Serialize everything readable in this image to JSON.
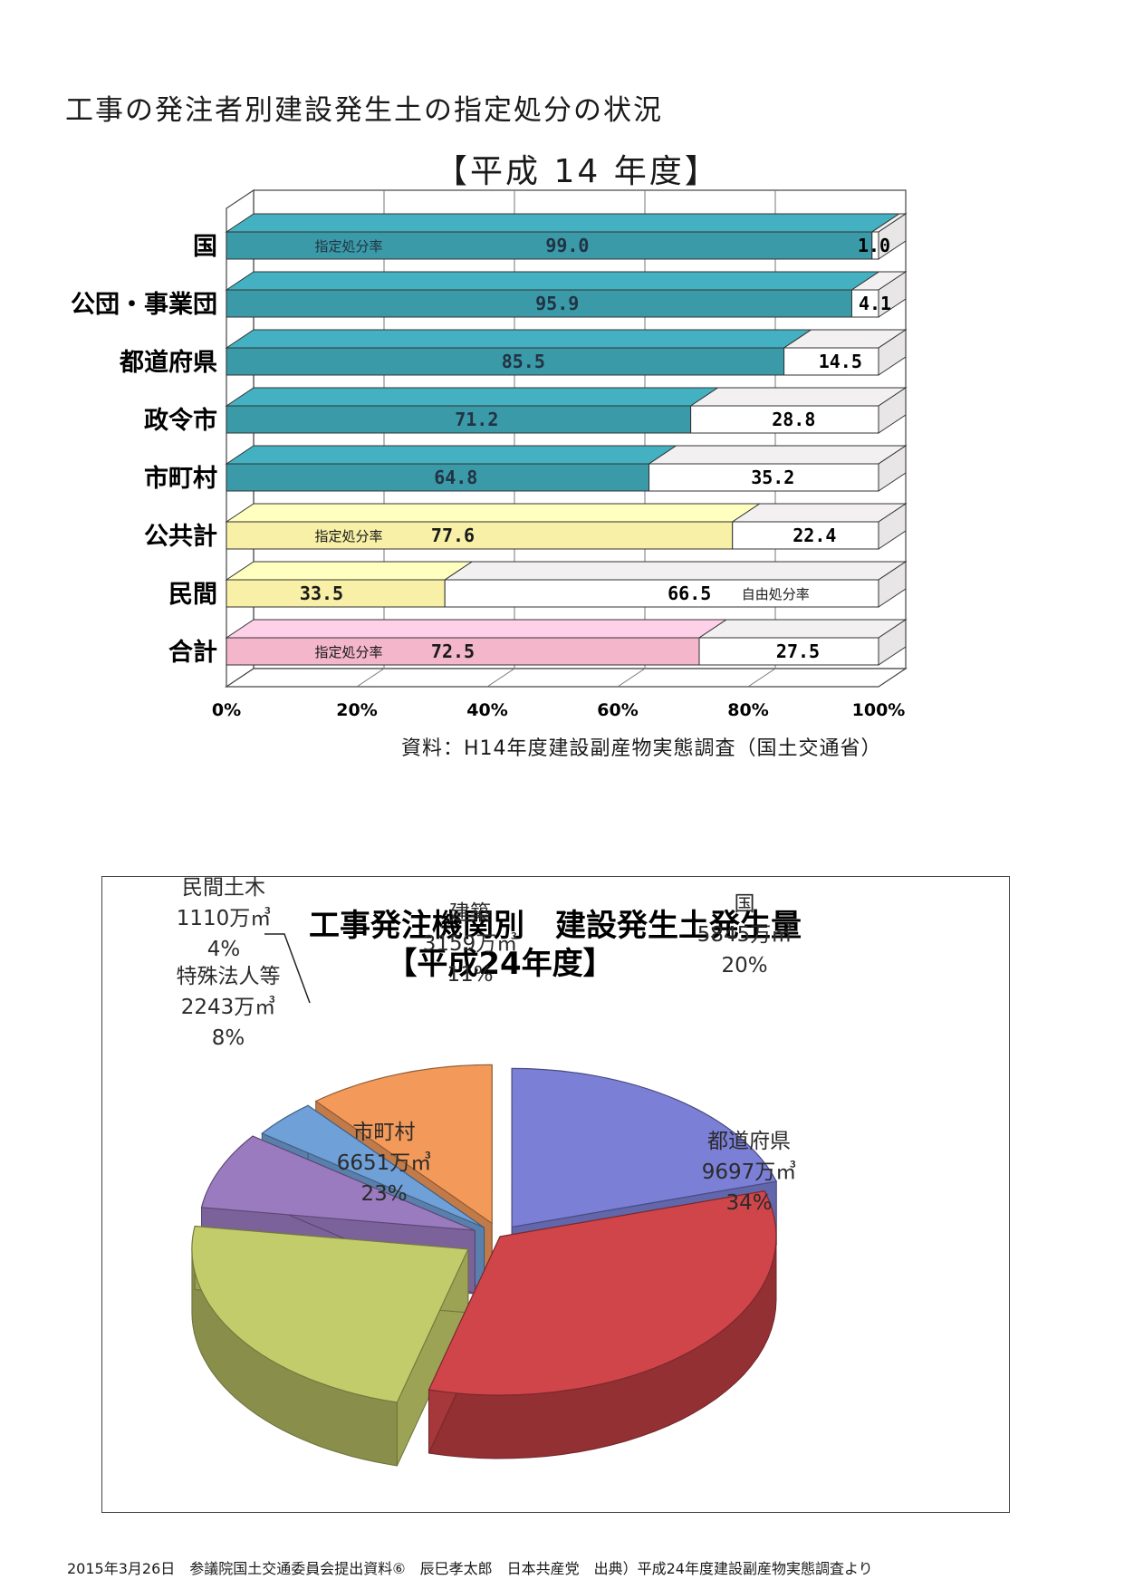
{
  "page_title": "工事の発注者別建設発生土の指定処分の状況",
  "footer_note": "2015年3月26日　参議院国土交通委員会提出資料⑥　辰巳孝太郎　日本共産党　出典）平成24年度建設副産物実態調査より",
  "chart_data": [
    {
      "type": "bar",
      "orientation": "horizontal-stacked-3d",
      "subtitle": "【平成 14 年度】",
      "source": "資料：H14年度建設副産物実態調査（国土交通省）",
      "categories": [
        "国",
        "公団・事業団",
        "都道府県",
        "政令市",
        "市町村",
        "公共計",
        "民間",
        "合計"
      ],
      "series": [
        {
          "name": "指定処分率",
          "values": [
            99.0,
            95.9,
            85.5,
            71.2,
            64.8,
            77.6,
            33.5,
            72.5
          ]
        },
        {
          "name": "自由処分率",
          "values": [
            1.0,
            4.1,
            14.5,
            28.8,
            35.2,
            22.4,
            66.5,
            27.5
          ]
        }
      ],
      "value_labels_designated": [
        "99.0",
        "95.9",
        "85.5",
        "71.2",
        "64.8",
        "77.6",
        "33.5",
        "72.5"
      ],
      "value_labels_free": [
        "1.0",
        "4.1",
        "14.5",
        "28.8",
        "35.2",
        "22.4",
        "66.5",
        "27.5"
      ],
      "annotations": [
        {
          "row": 0,
          "text": "指定処分率"
        },
        {
          "row": 5,
          "text": "指定処分率"
        },
        {
          "row": 6,
          "text": "自由処分率"
        },
        {
          "row": 7,
          "text": "指定処分率"
        }
      ],
      "x_ticks": [
        "0%",
        "20%",
        "40%",
        "60%",
        "80%",
        "100%"
      ],
      "xlim": [
        0,
        100
      ],
      "grid": true,
      "colors": {
        "public_agencies": "#3a9aa8",
        "public_total_and_private": "#f7f0a6",
        "total": "#f3b6cb",
        "free": "#ffffff"
      }
    },
    {
      "type": "pie",
      "title": "工事発注機関別　建設発生土発生量",
      "subtitle": "【平成24年度】",
      "unit": "万㎥",
      "slices": [
        {
          "name": "国",
          "value": 5845,
          "value_label": "5845万㎥",
          "percent": 20,
          "percent_label": "20%",
          "color": "#7b7fd6"
        },
        {
          "name": "都道府県",
          "value": 9697,
          "value_label": "9697万㎥",
          "percent": 34,
          "percent_label": "34%",
          "color": "#d0454a"
        },
        {
          "name": "市町村",
          "value": 6651,
          "value_label": "6651万㎥",
          "percent": 23,
          "percent_label": "23%",
          "color": "#c3cc6a"
        },
        {
          "name": "特殊法人等",
          "value": 2243,
          "value_label": "2243万㎥",
          "percent": 8,
          "percent_label": "8%",
          "color": "#9b7bc0"
        },
        {
          "name": "民間土木",
          "value": 1110,
          "value_label": "1110万㎥",
          "percent": 4,
          "percent_label": "4%",
          "color": "#6fa0d8"
        },
        {
          "name": "建築",
          "value": 3159,
          "value_label": "3159万㎥",
          "percent": 11,
          "percent_label": "11%",
          "color": "#f39a5a"
        }
      ]
    }
  ]
}
